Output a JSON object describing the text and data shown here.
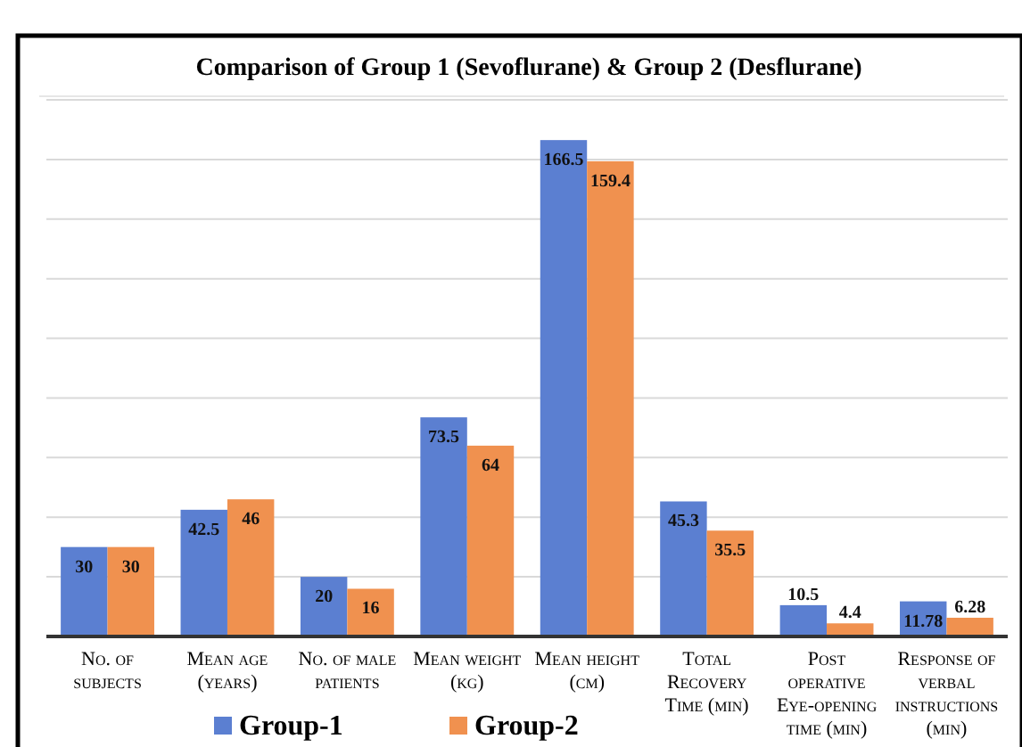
{
  "chart_data": {
    "type": "bar",
    "title": "Comparison of Group 1 (Sevoflurane) & Group 2 (Desflurane)",
    "categories": [
      "No. of subjects",
      "Mean age (years)",
      "No. of male patients",
      "Mean weight (kg)",
      "Mean height (cm)",
      "Total Recovery Time (min)",
      "Post operative Eye-opening time (min)",
      "Response of verbal instructions (min)"
    ],
    "series": [
      {
        "name": "Group-1",
        "color": "#5b7fd1",
        "values": [
          30,
          42.5,
          20,
          73.5,
          166.5,
          45.3,
          10.5,
          11.78
        ]
      },
      {
        "name": "Group-2",
        "color": "#f0914f",
        "values": [
          30,
          46,
          16,
          64,
          159.4,
          35.5,
          4.4,
          6.28
        ]
      }
    ],
    "ylim": [
      0,
      180
    ],
    "yticks": [
      {
        "value": 0,
        "label": null
      },
      {
        "value": 20,
        "label": null
      },
      {
        "value": 40,
        "label": null
      },
      {
        "value": 60,
        "label": null
      },
      {
        "value": 80,
        "label": null
      },
      {
        "value": 100,
        "label": null
      },
      {
        "value": 120,
        "label": null
      },
      {
        "value": 140,
        "label": null
      },
      {
        "value": 160,
        "label": null
      },
      {
        "value": 180,
        "label": null
      }
    ],
    "tick_labels": "x",
    "grid": "y",
    "data_labels": true,
    "legend": "bottom"
  }
}
